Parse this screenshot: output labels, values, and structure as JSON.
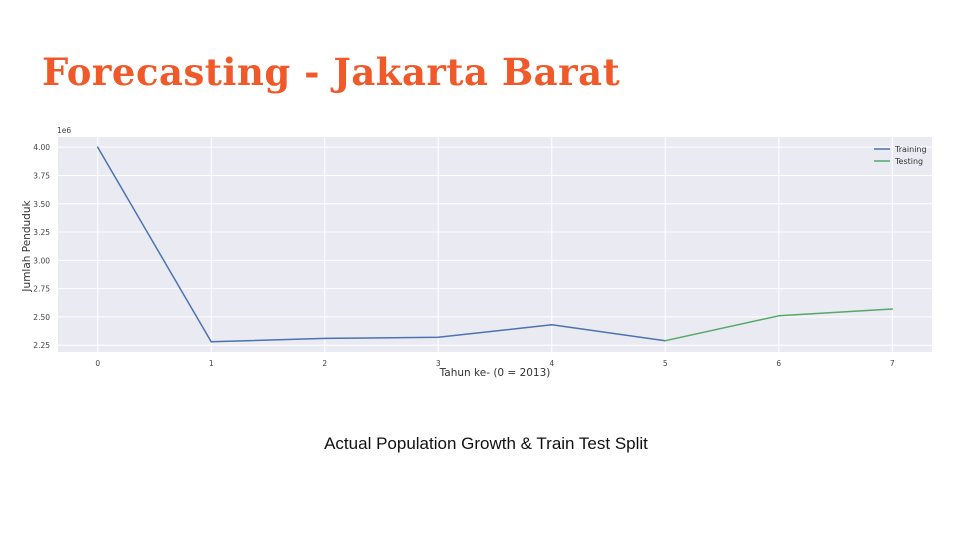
{
  "slide": {
    "title": "Forecasting - Jakarta Barat",
    "caption": "Actual Population Growth & Train Test Split"
  },
  "chart_data": {
    "type": "line",
    "xlabel": "Tahun ke- (0 = 2013)",
    "ylabel": "Jumlah Penduduk",
    "y_offset_label": "1e6",
    "x_ticks": [
      "0",
      "1",
      "2",
      "3",
      "4",
      "5",
      "6",
      "7"
    ],
    "y_ticks": [
      "2.25",
      "2.50",
      "2.75",
      "3.00",
      "3.25",
      "3.50",
      "3.75",
      "4.00"
    ],
    "xlim": [
      -0.35,
      7.35
    ],
    "ylim": [
      2.19,
      4.09
    ],
    "grid": true,
    "legend_position": "top-right",
    "series": [
      {
        "name": "Training",
        "color": "#4c72b0",
        "x": [
          0,
          1,
          2,
          3,
          4,
          5
        ],
        "y": [
          4.0,
          2.28,
          2.31,
          2.32,
          2.43,
          2.29
        ]
      },
      {
        "name": "Testing",
        "color": "#55a868",
        "x": [
          5,
          6,
          7
        ],
        "y": [
          2.29,
          2.51,
          2.57
        ]
      }
    ]
  }
}
